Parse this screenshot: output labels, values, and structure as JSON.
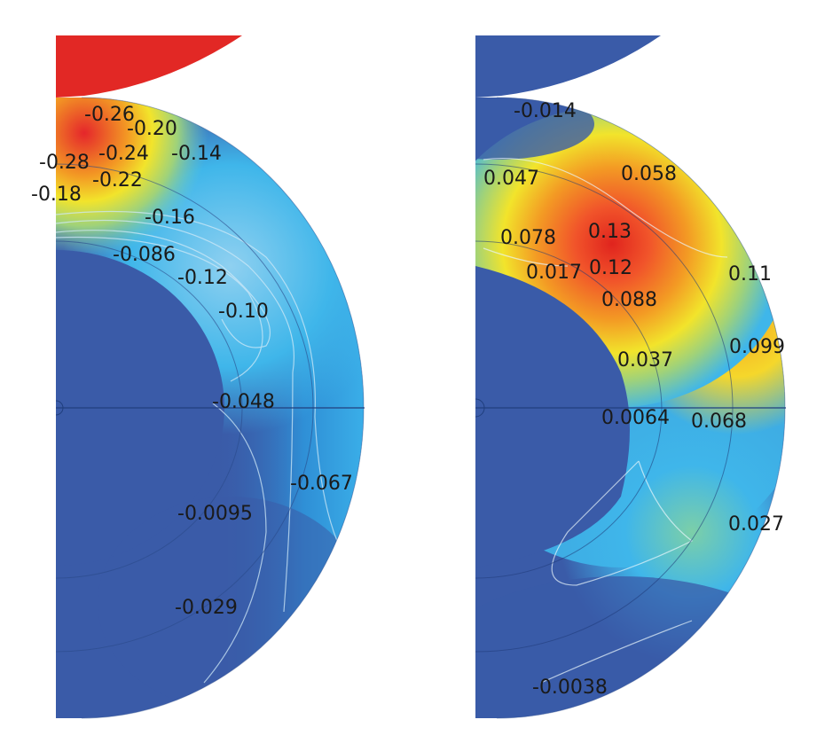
{
  "panels": [
    {
      "id": "left",
      "labels": [
        "-0.26",
        "-0.20",
        "-0.28",
        "-0.24",
        "-0.14",
        "-0.22",
        "-0.18",
        "-0.16",
        "-0.086",
        "-0.12",
        "-0.10",
        "-0.048",
        "-0.067",
        "-0.0095",
        "-0.029"
      ]
    },
    {
      "id": "right",
      "labels": [
        "-0.014",
        "0.047",
        "0.058",
        "0.078",
        "0.13",
        "0.017",
        "0.12",
        "0.11",
        "0.088",
        "0.099",
        "0.037",
        "0.0064",
        "0.068",
        "0.027",
        "-0.0038"
      ]
    }
  ],
  "colors": {
    "min": "#3a5ba8",
    "cyan": "#33b5e8",
    "green": "#9fd27a",
    "yellow": "#f2e42b",
    "orange": "#f39a24",
    "max": "#e5262b"
  }
}
